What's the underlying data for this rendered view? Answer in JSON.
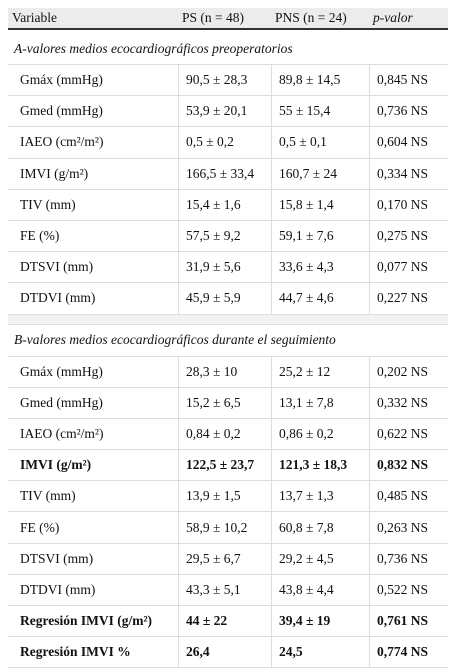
{
  "header": {
    "columns": [
      "Variable",
      "PS (n = 48)",
      "PNS (n = 24)",
      "p-valor"
    ]
  },
  "sections": [
    {
      "title": "A-valores medios ecocardiográficos preoperatorios",
      "rows": [
        {
          "cells": [
            "Gmáx (mmHg)",
            "90,5 ± 28,3",
            "89,8 ± 14,5",
            "0,845 NS"
          ]
        },
        {
          "cells": [
            "Gmed (mmHg)",
            "53,9 ± 20,1",
            "55 ± 15,4",
            "0,736 NS"
          ]
        },
        {
          "cells": [
            "IAEO (cm²/m²)",
            "0,5 ± 0,2",
            "0,5 ± 0,1",
            "0,604 NS"
          ]
        },
        {
          "cells": [
            "IMVI (g/m²)",
            "166,5 ± 33,4",
            "160,7 ± 24",
            "0,334 NS"
          ]
        },
        {
          "cells": [
            "TIV (mm)",
            "15,4 ± 1,6",
            "15,8 ± 1,4",
            "0,170 NS"
          ]
        },
        {
          "cells": [
            "FE (%)",
            "57,5 ± 9,2",
            "59,1 ± 7,6",
            "0,275 NS"
          ]
        },
        {
          "cells": [
            "DTSVI (mm)",
            "31,9 ± 5,6",
            "33,6 ± 4,3",
            "0,077 NS"
          ]
        },
        {
          "cells": [
            "DTDVI (mm)",
            "45,9 ± 5,9",
            "44,7 ± 4,6",
            "0,227 NS"
          ]
        }
      ]
    },
    {
      "title": "B-valores medios ecocardiográficos durante el seguimiento",
      "rows": [
        {
          "cells": [
            "Gmáx (mmHg)",
            "28,3 ± 10",
            "25,2 ± 12",
            "0,202 NS"
          ]
        },
        {
          "cells": [
            "Gmed (mmHg)",
            "15,2 ± 6,5",
            "13,1 ± 7,8",
            "0,332 NS"
          ]
        },
        {
          "cells": [
            "IAEO (cm²/m²)",
            "0,84 ± 0,2",
            "0,86 ± 0,2",
            "0,622 NS"
          ]
        },
        {
          "cells": [
            "IMVI (g/m²)",
            "122,5 ± 23,7",
            "121,3 ± 18,3",
            "0,832 NS"
          ],
          "bold": true
        },
        {
          "cells": [
            "TIV (mm)",
            "13,9 ± 1,5",
            "13,7 ± 1,3",
            "0,485 NS"
          ]
        },
        {
          "cells": [
            "FE (%)",
            "58,9 ± 10,2",
            "60,8 ± 7,8",
            "0,263 NS"
          ]
        },
        {
          "cells": [
            "DTSVI (mm)",
            "29,5 ± 6,7",
            "29,2 ± 4,5",
            "0,736 NS"
          ]
        },
        {
          "cells": [
            "DTDVI (mm)",
            "43,3 ± 5,1",
            "43,8 ± 4,4",
            "0,522 NS"
          ]
        },
        {
          "cells": [
            "Regresión IMVI (g/m²)",
            "44 ± 22",
            "39,4 ± 19",
            "0,761 NS"
          ],
          "bold": true
        },
        {
          "cells": [
            "Regresión IMVI %",
            "26,4",
            "24,5",
            "0,774 NS"
          ],
          "bold": true
        }
      ]
    }
  ]
}
